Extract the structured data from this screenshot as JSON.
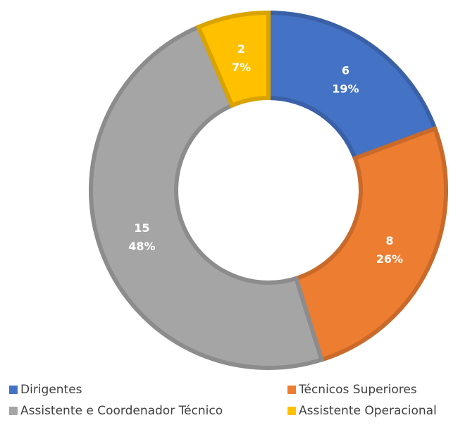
{
  "chart_data": {
    "type": "donut",
    "categories": [
      "Dirigentes",
      "Técnicos Superiores",
      "Assistente e Coordenador Técnico",
      "Assistente Operacional"
    ],
    "values": [
      6,
      8,
      15,
      2
    ],
    "percent_labels": [
      "19%",
      "26%",
      "48%",
      "7%"
    ],
    "colors": [
      "#4472c4",
      "#ed7d31",
      "#a5a5a5",
      "#ffc000"
    ],
    "legend": "bottom"
  }
}
